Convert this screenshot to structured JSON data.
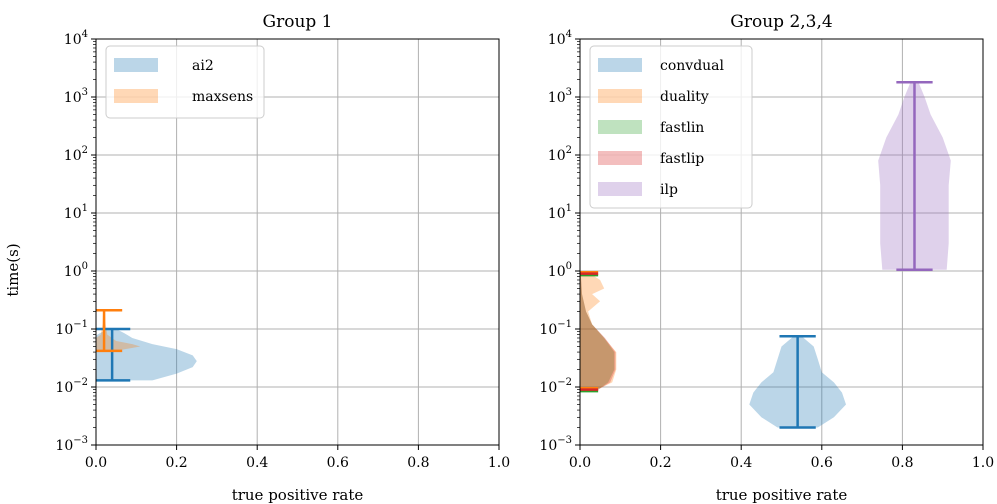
{
  "chart_data": [
    {
      "type": "violin",
      "title": "Group 1",
      "xlabel": "true positive rate",
      "ylabel": "time(s)",
      "xlim": [
        0.0,
        1.0
      ],
      "ylim": [
        0.001,
        10000
      ],
      "yscale": "log",
      "grid": true,
      "legend_position": "top-left",
      "x_ticks": [
        "0.0",
        "0.2",
        "0.4",
        "0.6",
        "0.8",
        "1.0"
      ],
      "y_ticks": [
        {
          "base": "10",
          "exp": "−3"
        },
        {
          "base": "10",
          "exp": "−2"
        },
        {
          "base": "10",
          "exp": "−1"
        },
        {
          "base": "10",
          "exp": "0"
        },
        {
          "base": "10",
          "exp": "1"
        },
        {
          "base": "10",
          "exp": "2"
        },
        {
          "base": "10",
          "exp": "3"
        },
        {
          "base": "10",
          "exp": "4"
        }
      ],
      "series": [
        {
          "name": "ai2",
          "color": "#1f77b4",
          "position": 0.04,
          "min": 0.013,
          "max": 0.1,
          "profile": [
            [
              0.013,
              0.1
            ],
            [
              0.017,
              0.16
            ],
            [
              0.022,
              0.2
            ],
            [
              0.028,
              0.21
            ],
            [
              0.035,
              0.2
            ],
            [
              0.045,
              0.16
            ],
            [
              0.055,
              0.1
            ],
            [
              0.07,
              0.05
            ],
            [
              0.085,
              0.03
            ],
            [
              0.1,
              0.01
            ]
          ]
        },
        {
          "name": "maxsens",
          "color": "#ff7f0e",
          "position": 0.02,
          "min": 0.042,
          "max": 0.21,
          "profile": [
            [
              0.042,
              0.03
            ],
            [
              0.046,
              0.06
            ],
            [
              0.05,
              0.09
            ],
            [
              0.055,
              0.07
            ],
            [
              0.062,
              0.03
            ],
            [
              0.08,
              0.008
            ],
            [
              0.12,
              0.004
            ],
            [
              0.21,
              0.002
            ]
          ]
        }
      ]
    },
    {
      "type": "violin",
      "title": "Group 2,3,4",
      "xlabel": "true positive rate",
      "xlim": [
        0.0,
        1.0
      ],
      "ylim": [
        0.001,
        10000
      ],
      "yscale": "log",
      "grid": true,
      "legend_position": "top-left",
      "x_ticks": [
        "0.0",
        "0.2",
        "0.4",
        "0.6",
        "0.8",
        "1.0"
      ],
      "y_ticks": [
        {
          "base": "10",
          "exp": "−3"
        },
        {
          "base": "10",
          "exp": "−2"
        },
        {
          "base": "10",
          "exp": "−1"
        },
        {
          "base": "10",
          "exp": "0"
        },
        {
          "base": "10",
          "exp": "1"
        },
        {
          "base": "10",
          "exp": "2"
        },
        {
          "base": "10",
          "exp": "3"
        },
        {
          "base": "10",
          "exp": "4"
        }
      ],
      "series": [
        {
          "name": "convdual",
          "color": "#1f77b4",
          "position": 0.54,
          "min": 0.002,
          "max": 0.075,
          "profile": [
            [
              0.002,
              0.05
            ],
            [
              0.003,
              0.09
            ],
            [
              0.005,
              0.12
            ],
            [
              0.008,
              0.11
            ],
            [
              0.012,
              0.09
            ],
            [
              0.018,
              0.06
            ],
            [
              0.03,
              0.05
            ],
            [
              0.05,
              0.04
            ],
            [
              0.075,
              0.01
            ]
          ]
        },
        {
          "name": "duality",
          "color": "#ff7f0e",
          "position": 0.0,
          "min": 0.0095,
          "max": 0.95,
          "profile": [
            [
              0.0095,
              0.05
            ],
            [
              0.012,
              0.08
            ],
            [
              0.02,
              0.09
            ],
            [
              0.04,
              0.09
            ],
            [
              0.07,
              0.06
            ],
            [
              0.12,
              0.03
            ],
            [
              0.2,
              0.02
            ],
            [
              0.3,
              0.05
            ],
            [
              0.4,
              0.03
            ],
            [
              0.5,
              0.06
            ],
            [
              0.7,
              0.05
            ],
            [
              0.95,
              0.02
            ]
          ]
        },
        {
          "name": "fastlin",
          "color": "#2ca02c",
          "position": 0.0,
          "min": 0.0085,
          "max": 0.85,
          "profile": [
            [
              0.0085,
              0.04
            ],
            [
              0.012,
              0.07
            ],
            [
              0.02,
              0.085
            ],
            [
              0.04,
              0.085
            ],
            [
              0.07,
              0.06
            ],
            [
              0.12,
              0.03
            ],
            [
              0.2,
              0.015
            ],
            [
              0.4,
              0.005
            ],
            [
              0.85,
              0.002
            ]
          ]
        },
        {
          "name": "fastlip",
          "color": "#d62728",
          "position": 0.0,
          "min": 0.009,
          "max": 0.9,
          "profile": [
            [
              0.009,
              0.045
            ],
            [
              0.012,
              0.075
            ],
            [
              0.02,
              0.088
            ],
            [
              0.04,
              0.088
            ],
            [
              0.07,
              0.062
            ],
            [
              0.12,
              0.03
            ],
            [
              0.2,
              0.015
            ],
            [
              0.4,
              0.005
            ],
            [
              0.9,
              0.002
            ]
          ]
        },
        {
          "name": "ilp",
          "color": "#9467bd",
          "position": 0.83,
          "min": 1.05,
          "max": 1800,
          "profile": [
            [
              1.05,
              0.08
            ],
            [
              3,
              0.085
            ],
            [
              10,
              0.085
            ],
            [
              30,
              0.085
            ],
            [
              80,
              0.09
            ],
            [
              200,
              0.07
            ],
            [
              500,
              0.04
            ],
            [
              1000,
              0.025
            ],
            [
              1800,
              0.01
            ]
          ]
        }
      ]
    }
  ]
}
